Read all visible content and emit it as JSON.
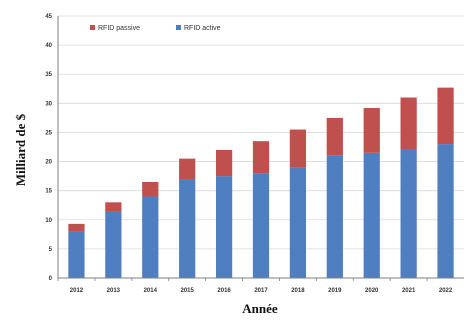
{
  "chart_data": {
    "type": "bar",
    "stacked": true,
    "title": "",
    "xlabel": "Année",
    "ylabel": "Milliard de $",
    "ylim": [
      0,
      45
    ],
    "yticks": [
      0,
      5,
      10,
      15,
      20,
      25,
      30,
      35,
      40,
      45
    ],
    "grid": true,
    "legend_position": "top-left",
    "categories": [
      "2012",
      "2013",
      "2014",
      "2015",
      "2016",
      "2017",
      "2018",
      "2019",
      "2020",
      "2021",
      "2022"
    ],
    "series": [
      {
        "name": "RFID active",
        "color": "#4f7fc1",
        "values": [
          8,
          11.5,
          14,
          17,
          17.5,
          18,
          19,
          21,
          21.5,
          22,
          23
        ]
      },
      {
        "name": "RFID passive",
        "color": "#c0504d",
        "values": [
          1.3,
          1.5,
          2.5,
          3.5,
          4.5,
          5.5,
          6.5,
          6.5,
          7.7,
          9,
          9.7
        ]
      }
    ]
  }
}
